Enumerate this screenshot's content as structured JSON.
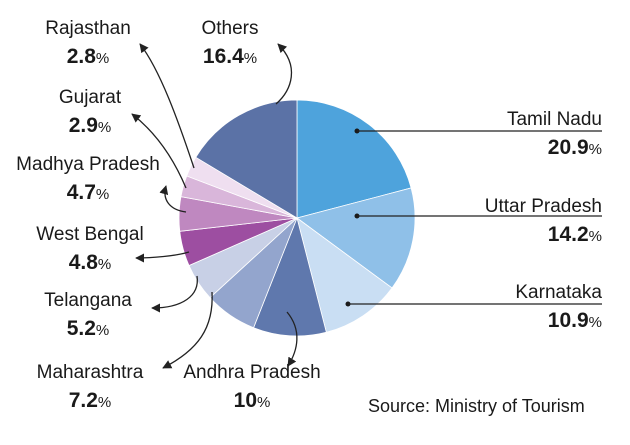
{
  "chart_data": {
    "type": "pie",
    "source": "Source: Ministry of Tourism",
    "slices": [
      {
        "label": "Tamil Nadu",
        "value": 20.9,
        "display": "20.9",
        "color": "#4ea3dc"
      },
      {
        "label": "Uttar Pradesh",
        "value": 14.2,
        "display": "14.2",
        "color": "#8fc0e8"
      },
      {
        "label": "Karnataka",
        "value": 10.9,
        "display": "10.9",
        "color": "#c9def3"
      },
      {
        "label": "Andhra Pradesh",
        "value": 10,
        "display": "10",
        "color": "#5f78ad"
      },
      {
        "label": "Maharashtra",
        "value": 7.2,
        "display": "7.2",
        "color": "#93a5cd"
      },
      {
        "label": "Telangana",
        "value": 5.2,
        "display": "5.2",
        "color": "#c8d0e6"
      },
      {
        "label": "West Bengal",
        "value": 4.8,
        "display": "4.8",
        "color": "#9d4ea1"
      },
      {
        "label": "Madhya Pradesh",
        "value": 4.7,
        "display": "4.7",
        "color": "#bf88c0"
      },
      {
        "label": "Gujarat",
        "value": 2.9,
        "display": "2.9",
        "color": "#d9b6da"
      },
      {
        "label": "Rajasthan",
        "value": 2.8,
        "display": "2.8",
        "color": "#efdff0"
      },
      {
        "label": "Others",
        "value": 16.4,
        "display": "16.4",
        "color": "#5b72a6"
      }
    ]
  }
}
